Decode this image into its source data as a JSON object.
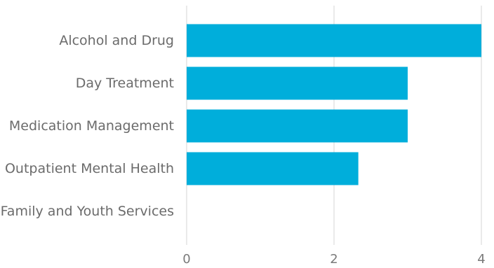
{
  "chart_data": {
    "type": "bar",
    "orientation": "horizontal",
    "categories": [
      "Alcohol and Drug",
      "Day Treatment",
      "Medication Management",
      "Outpatient Mental Health",
      "Family and Youth Services"
    ],
    "values": [
      4,
      3,
      3,
      2.33,
      0
    ],
    "xlim": [
      0,
      4
    ],
    "xticks": [
      "0",
      "2",
      "4"
    ],
    "grid": true,
    "bar_color": "#00AEDB",
    "grid_color": "#E3E3E3",
    "label_color": "#6B6B6B"
  }
}
